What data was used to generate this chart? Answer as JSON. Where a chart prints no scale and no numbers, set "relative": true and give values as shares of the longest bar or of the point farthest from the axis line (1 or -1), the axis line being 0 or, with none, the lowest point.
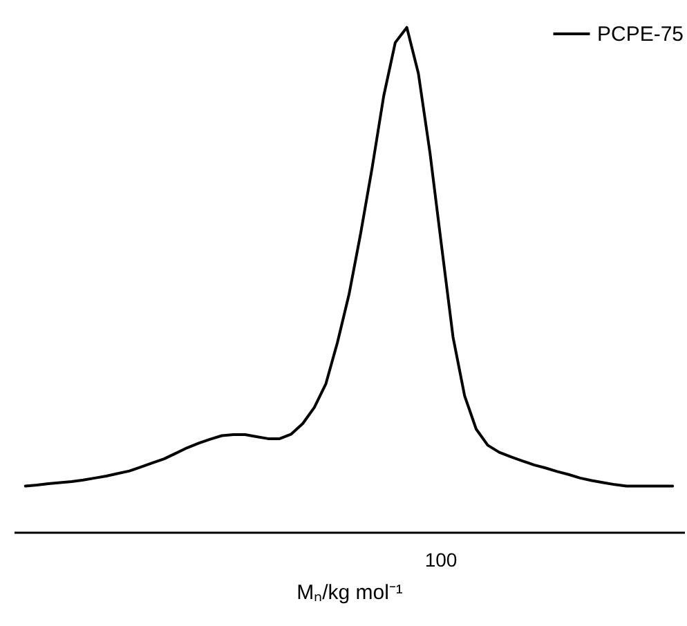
{
  "chart_data": {
    "type": "line",
    "relative": true,
    "xlabel": "Mₙ/kg mol⁻¹",
    "legend": "top right",
    "marker": "none",
    "line_style": "solid",
    "grid": false,
    "annotations": [
      "100"
    ],
    "categories": [
      null,
      null,
      null,
      null,
      null,
      null,
      null,
      null,
      null,
      null,
      null,
      null,
      null,
      null,
      null,
      null,
      null,
      null,
      null,
      null,
      null,
      null,
      null,
      null,
      null,
      null,
      null,
      null,
      null,
      null,
      null,
      null,
      null,
      null,
      null,
      null,
      null,
      null,
      null,
      null,
      null,
      null,
      null,
      null,
      null,
      null,
      null,
      null,
      null,
      null,
      null,
      null,
      null,
      null,
      null,
      null,
      null
    ],
    "series": [
      {
        "name": "PCPE-75",
        "color": "#000000",
        "values": [
          0.091,
          0.093,
          0.096,
          0.098,
          0.1,
          0.103,
          0.107,
          0.111,
          0.116,
          0.121,
          0.129,
          0.137,
          0.145,
          0.156,
          0.167,
          0.176,
          0.184,
          0.191,
          0.193,
          0.193,
          0.189,
          0.185,
          0.185,
          0.194,
          0.215,
          0.247,
          0.294,
          0.376,
          0.471,
          0.591,
          0.722,
          0.864,
          0.97,
          1,
          0.909,
          0.752,
          0.568,
          0.386,
          0.27,
          0.204,
          0.172,
          0.158,
          0.149,
          0.141,
          0.133,
          0.127,
          0.12,
          0.114,
          0.107,
          0.102,
          0.098,
          0.094,
          0.091,
          0.091,
          0.091,
          0.091,
          0.091
        ]
      }
    ]
  }
}
